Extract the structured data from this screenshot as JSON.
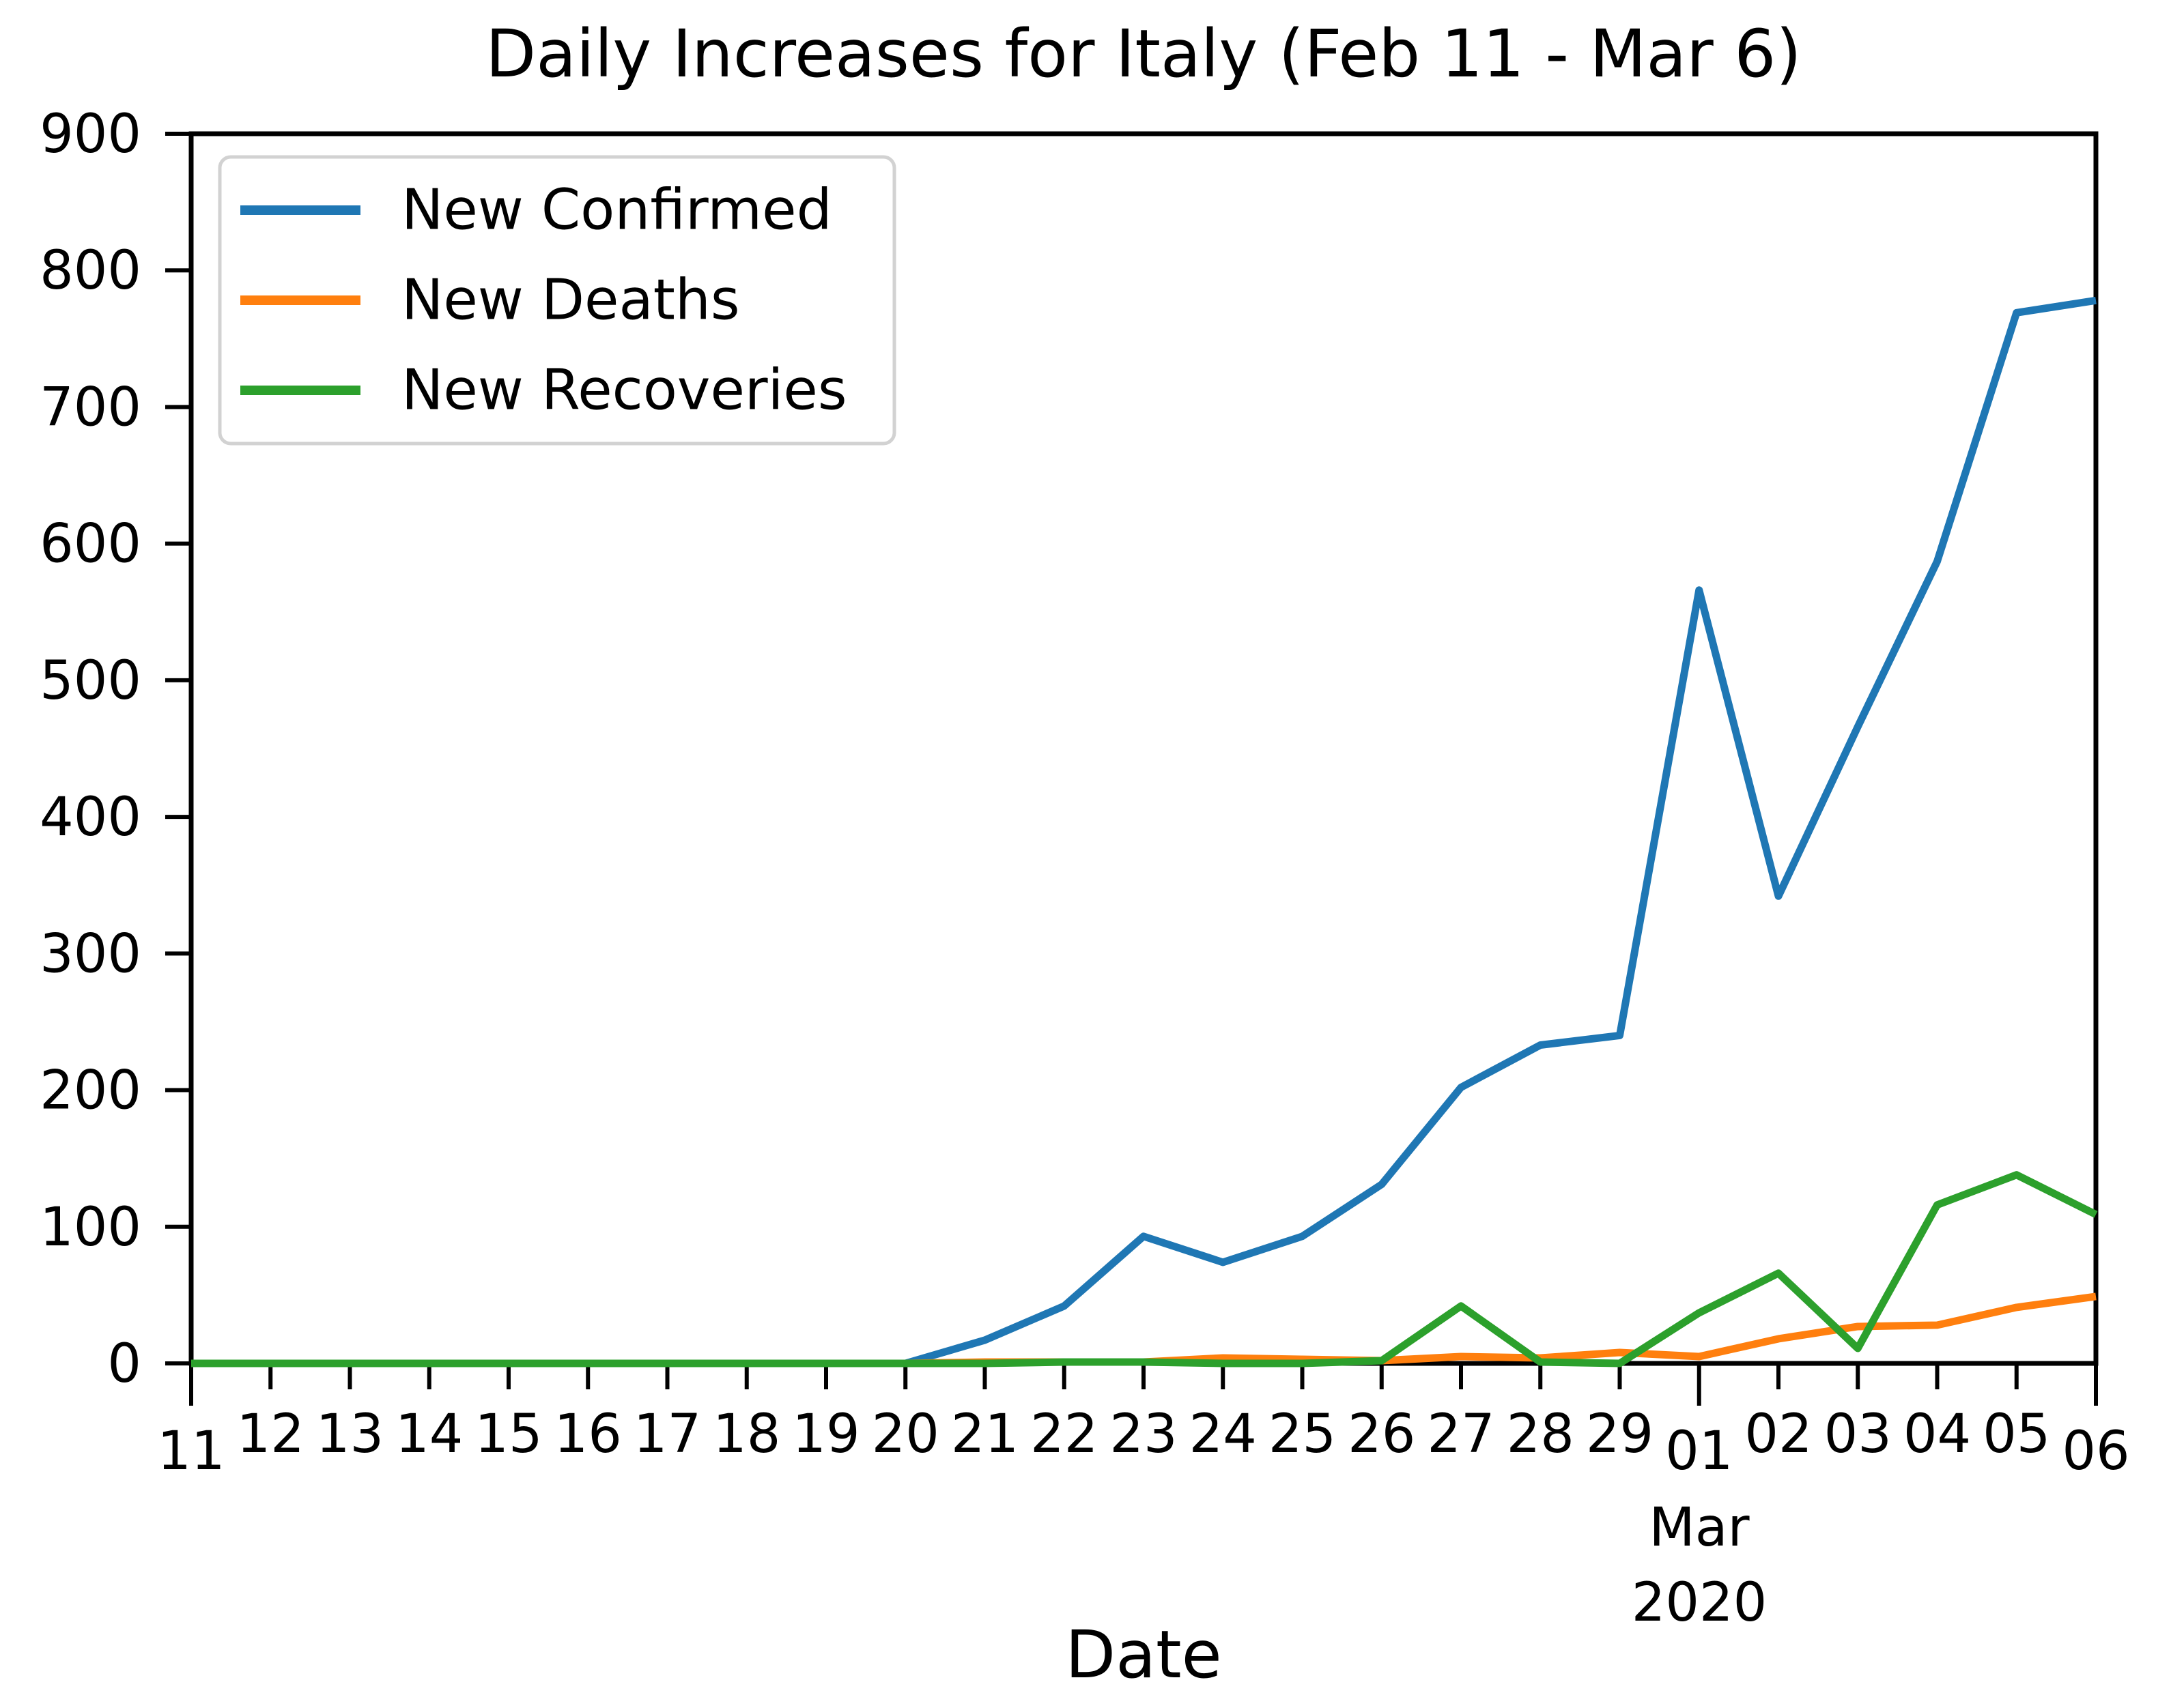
{
  "figure": {
    "background_color": "#ffffff",
    "spine_color": "#000000",
    "text_color": "#000000",
    "legend_border_color": "#d2d2d2"
  },
  "chart_data": {
    "type": "line",
    "title": "Daily Increases for Italy (Feb 11 - Mar 6)",
    "xlabel": "Date",
    "ylabel": "",
    "grid": false,
    "legend_position": "upper left",
    "ylim": [
      0,
      900
    ],
    "yticks": [
      0,
      100,
      200,
      300,
      400,
      500,
      600,
      700,
      800,
      900
    ],
    "x_tick_labels": [
      "11",
      "12",
      "13",
      "14",
      "15",
      "16",
      "17",
      "18",
      "19",
      "20",
      "21",
      "22",
      "23",
      "24",
      "25",
      "26",
      "27",
      "28",
      "29",
      "01",
      "02",
      "03",
      "04",
      "05",
      "06"
    ],
    "x_major_tick_indices": [
      0,
      19,
      24
    ],
    "month_annotation": {
      "label": "Mar",
      "year": "2020",
      "tick_index": 19
    },
    "categories": [
      "Feb 11",
      "Feb 12",
      "Feb 13",
      "Feb 14",
      "Feb 15",
      "Feb 16",
      "Feb 17",
      "Feb 18",
      "Feb 19",
      "Feb 20",
      "Feb 21",
      "Feb 22",
      "Feb 23",
      "Feb 24",
      "Feb 25",
      "Feb 26",
      "Feb 27",
      "Feb 28",
      "Feb 29",
      "Mar 01",
      "Mar 02",
      "Mar 03",
      "Mar 04",
      "Mar 05",
      "Mar 06"
    ],
    "series": [
      {
        "name": "New Confirmed",
        "color": "#1f77b4",
        "values": [
          0,
          0,
          0,
          0,
          0,
          0,
          0,
          0,
          0,
          0,
          17,
          42,
          93,
          74,
          93,
          131,
          202,
          233,
          240,
          566,
          342,
          466,
          587,
          769,
          778
        ]
      },
      {
        "name": "New Deaths",
        "color": "#ff7f0e",
        "values": [
          0,
          0,
          0,
          0,
          0,
          0,
          0,
          0,
          0,
          0,
          1,
          1,
          1,
          4,
          3,
          2,
          5,
          4,
          8,
          5,
          18,
          27,
          28,
          41,
          49
        ]
      },
      {
        "name": "New Recoveries",
        "color": "#2ca02c",
        "values": [
          0,
          0,
          0,
          0,
          0,
          0,
          0,
          0,
          0,
          0,
          0,
          1,
          1,
          0,
          0,
          2,
          42,
          1,
          0,
          37,
          66,
          11,
          116,
          138,
          109
        ]
      }
    ]
  }
}
